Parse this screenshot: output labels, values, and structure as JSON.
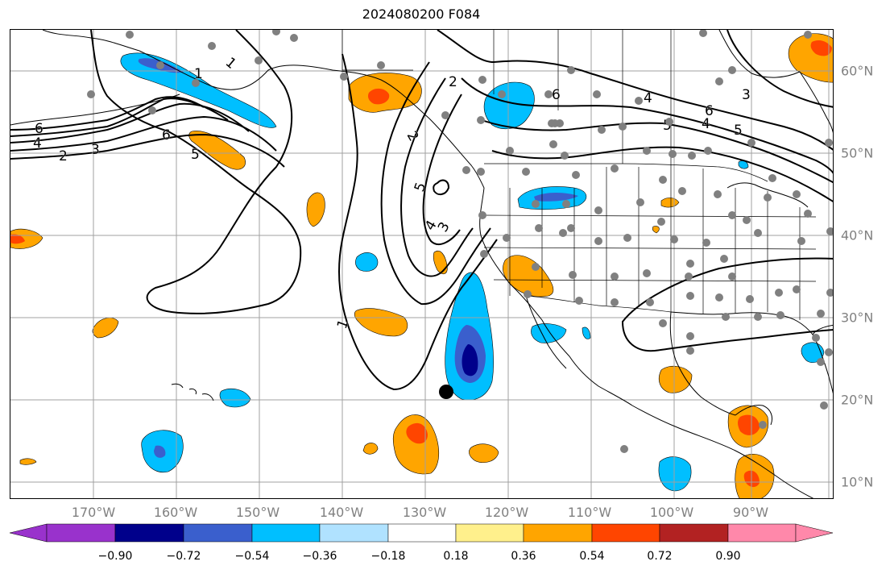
{
  "title": "2024080200 F084",
  "longitude_labels": [
    "170°W",
    "160°W",
    "150°W",
    "140°W",
    "130°W",
    "120°W",
    "110°W",
    "100°W",
    "90°W"
  ],
  "latitude_labels": [
    "60°N",
    "50°N",
    "40°N",
    "30°N",
    "20°N",
    "10°N"
  ],
  "colorbar": {
    "tick_labels": [
      "−0.90",
      "−0.72",
      "−0.54",
      "−0.36",
      "−0.18",
      "0.18",
      "0.36",
      "0.54",
      "0.72",
      "0.90"
    ],
    "colors": [
      "#9932cc",
      "#00008b",
      "#3a5fcd",
      "#00bfff",
      "#b0e2ff",
      "#ffffff",
      "#fff08c",
      "#ffa500",
      "#ff4500",
      "#b22222",
      "#ff88aa"
    ]
  },
  "contour_labels": [
    "1",
    "2",
    "3",
    "4",
    "5",
    "6",
    "2",
    "3",
    "4",
    "5",
    "6",
    "1",
    "2",
    "6",
    "5",
    "4",
    "6",
    "5",
    "4",
    "3",
    "1"
  ],
  "colors": {
    "grid": "#a0a0a0",
    "coast": "#000000",
    "station_dot": "#808080",
    "marker": "#000000"
  }
}
